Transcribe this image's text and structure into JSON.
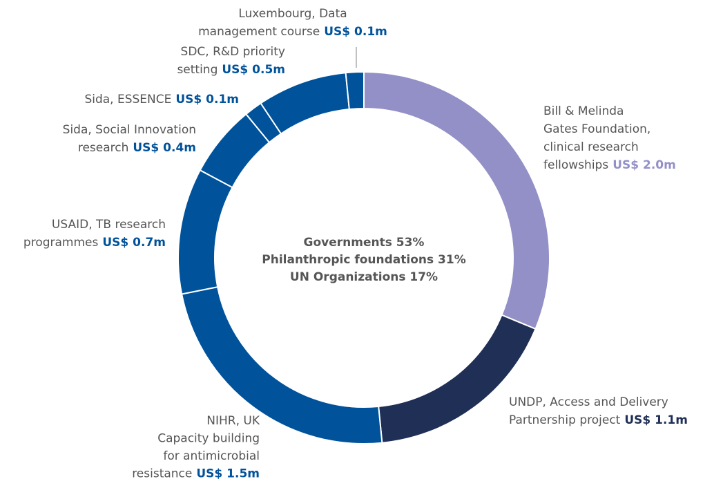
{
  "chart_data": {
    "type": "donut",
    "categories": [
      [
        "Bill & Melinda",
        "Gates Foundation,",
        "clinical research",
        "fellowships"
      ],
      [
        "UNDP, Access and Delivery",
        "Partnership project"
      ],
      [
        "NIHR, UK",
        "Capacity building",
        "for antimicrobial",
        "resistance"
      ],
      [
        "USAID, TB research",
        "programmes"
      ],
      [
        "Sida, Social Innovation",
        "research"
      ],
      [
        "Sida, ESSENCE"
      ],
      [
        "SDC, R&D priority",
        "setting"
      ],
      [
        "Luxembourg, Data",
        "management course"
      ]
    ],
    "values": [
      2.0,
      1.1,
      1.5,
      0.7,
      0.4,
      0.1,
      0.5,
      0.1
    ],
    "value_labels": [
      "US$ 2.0m",
      "US$ 1.1m",
      "US$ 1.5m",
      "US$ 0.7m",
      "US$ 0.4m",
      "US$ 0.1m",
      "US$ 0.5m",
      "US$ 0.1m"
    ],
    "colors": [
      "#9390c7",
      "#1f2f55",
      "#00529b",
      "#00529b",
      "#00529b",
      "#00529b",
      "#00529b",
      "#00529b"
    ],
    "annotations": [
      {
        "text": "Governments 53%",
        "color": "#00529b"
      },
      {
        "text": "Philanthropic foundations 31%",
        "color": "#9390c7"
      },
      {
        "text": "UN Organizations 17%",
        "color": "#1f2f55"
      }
    ]
  }
}
